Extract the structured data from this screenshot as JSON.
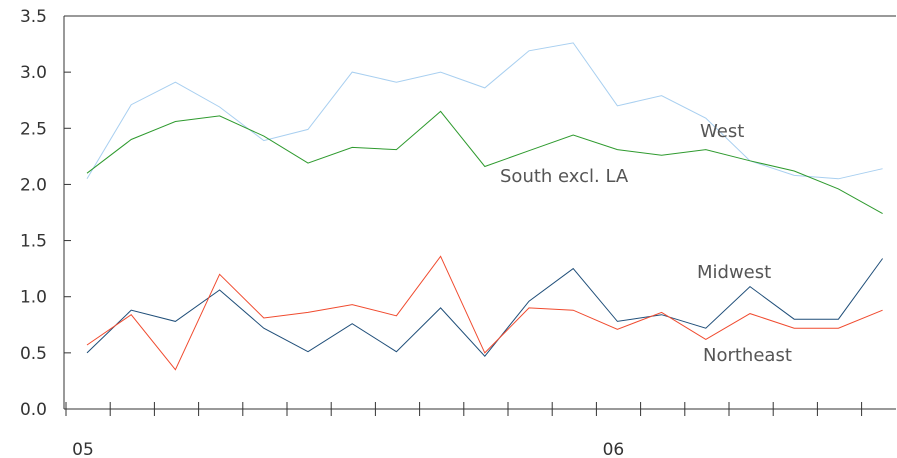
{
  "chart_data": {
    "type": "line",
    "x": [
      "05-01",
      "05-02",
      "05-03",
      "05-04",
      "05-05",
      "05-06",
      "05-07",
      "05-08",
      "05-09",
      "05-10",
      "05-11",
      "05-12",
      "06-01",
      "06-02",
      "06-03",
      "06-04",
      "06-05",
      "06-06",
      "06-07"
    ],
    "x_tick_labels": [
      {
        "index": 0,
        "label": "05"
      },
      {
        "index": 12,
        "label": "06"
      }
    ],
    "ylim": [
      0,
      3.5
    ],
    "y_ticks": [
      "0.0",
      "0.5",
      "1.0",
      "1.5",
      "2.0",
      "2.5",
      "3.0",
      "3.5"
    ],
    "title": "",
    "xlabel": "",
    "ylabel": "",
    "grid": false,
    "series": [
      {
        "name": "West",
        "color": "#a8cff0",
        "values": [
          2.05,
          2.71,
          2.91,
          2.69,
          2.39,
          2.49,
          3.0,
          2.91,
          3.0,
          2.86,
          3.19,
          3.26,
          2.7,
          2.79,
          2.59,
          2.21,
          2.08,
          2.05,
          2.14
        ]
      },
      {
        "name": "South excl. LA",
        "color": "#2e9a2e",
        "values": [
          2.1,
          2.4,
          2.56,
          2.61,
          2.43,
          2.19,
          2.33,
          2.31,
          2.65,
          2.16,
          2.3,
          2.44,
          2.31,
          2.26,
          2.31,
          2.21,
          2.12,
          1.96,
          1.74
        ]
      },
      {
        "name": "Midwest",
        "color": "#1f4e79",
        "values": [
          0.5,
          0.88,
          0.78,
          1.06,
          0.72,
          0.51,
          0.76,
          0.51,
          0.9,
          0.47,
          0.96,
          1.25,
          0.78,
          0.84,
          0.72,
          1.09,
          0.8,
          0.8,
          1.34
        ]
      },
      {
        "name": "Northeast",
        "color": "#f04a2e",
        "values": [
          0.57,
          0.84,
          0.35,
          1.2,
          0.81,
          0.86,
          0.93,
          0.83,
          1.36,
          0.5,
          0.9,
          0.88,
          0.71,
          0.86,
          0.62,
          0.85,
          0.72,
          0.72,
          0.88
        ]
      }
    ]
  }
}
